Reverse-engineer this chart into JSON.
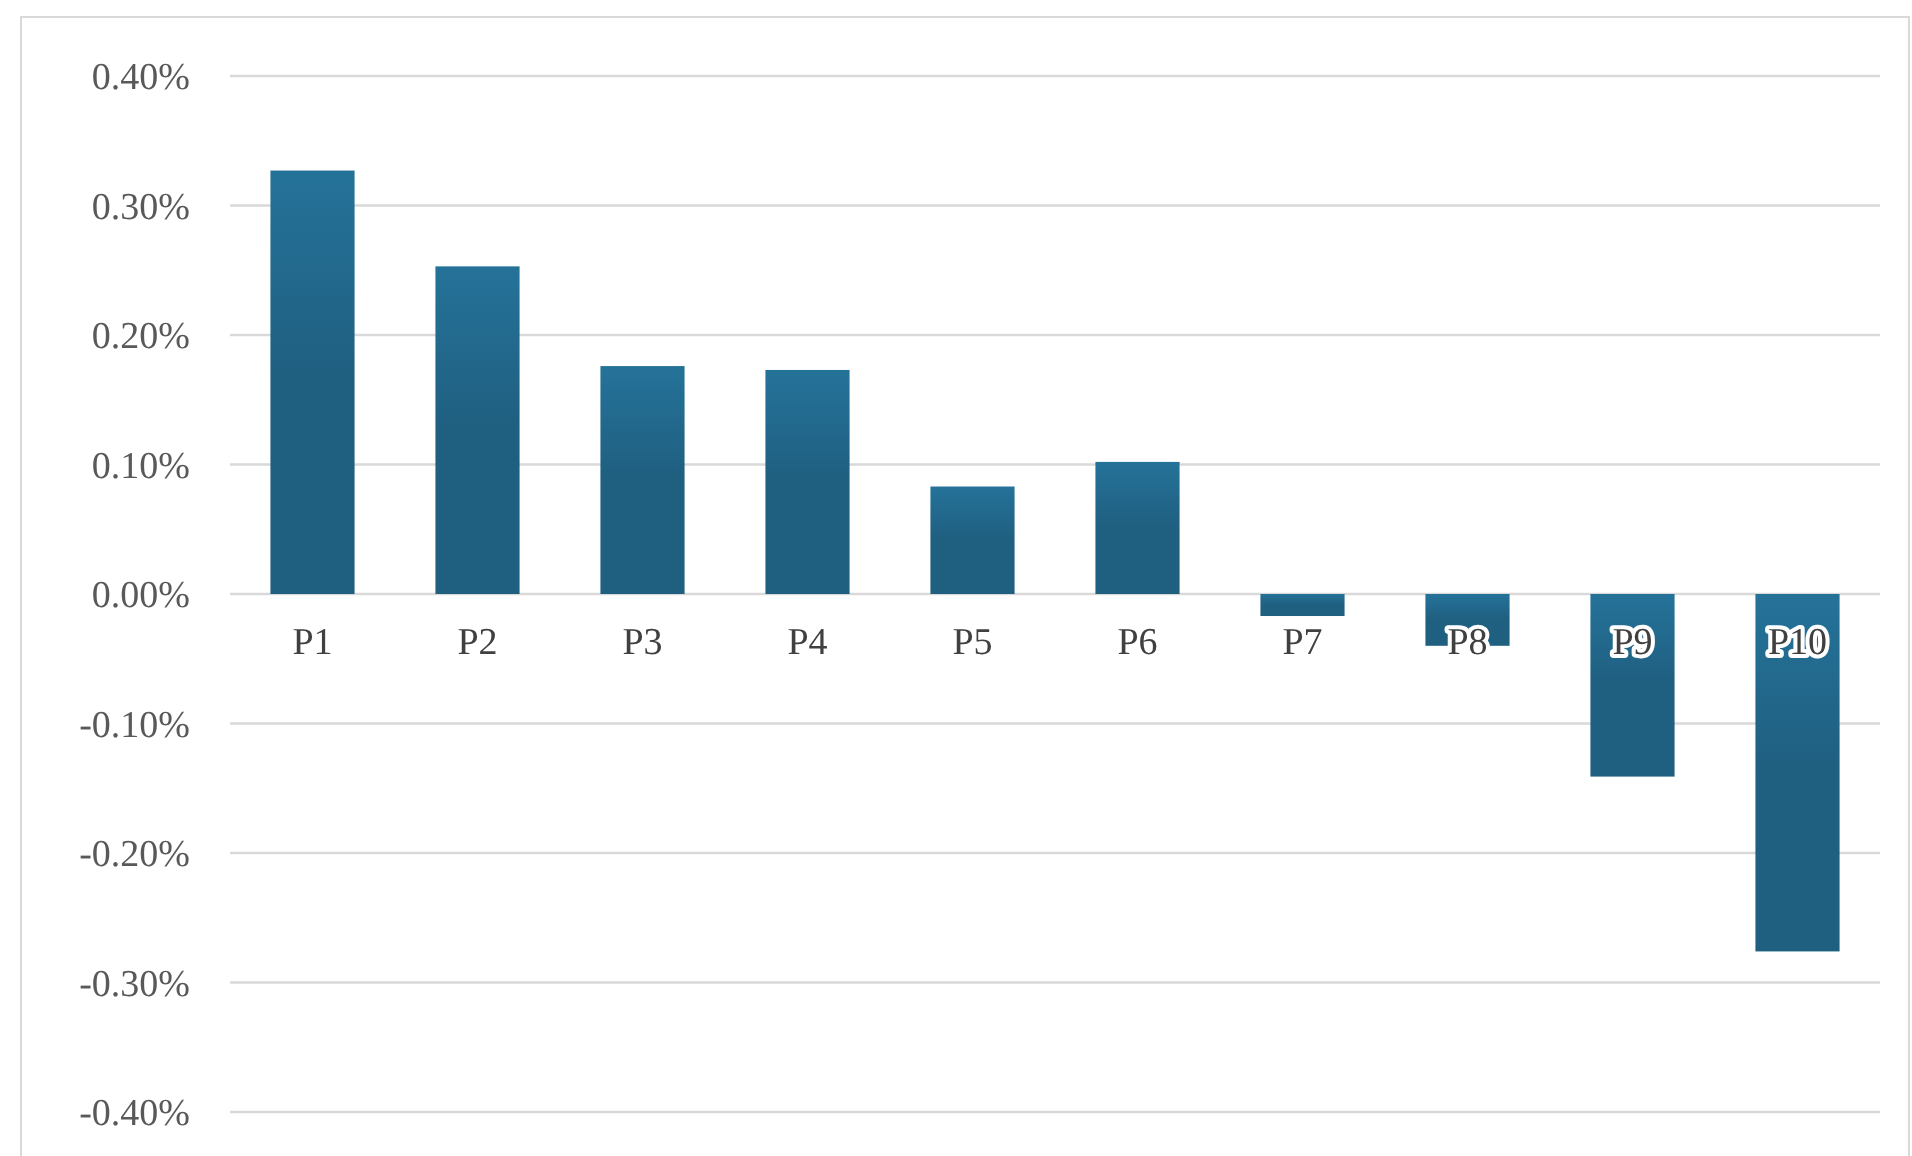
{
  "chart_data": {
    "type": "bar",
    "categories": [
      "P1",
      "P2",
      "P3",
      "P4",
      "P5",
      "P6",
      "P7",
      "P8",
      "P9",
      "P10"
    ],
    "values": [
      0.327,
      0.253,
      0.176,
      0.173,
      0.083,
      0.102,
      -0.017,
      -0.04,
      -0.141,
      -0.276
    ],
    "color": "#1f5f80",
    "ylim": [
      -0.4,
      0.4
    ],
    "yticks": [
      {
        "value": -0.4,
        "label": "-0.40%"
      },
      {
        "value": -0.3,
        "label": "-0.30%"
      },
      {
        "value": -0.2,
        "label": "-0.20%"
      },
      {
        "value": -0.1,
        "label": "-0.10%"
      },
      {
        "value": 0,
        "label": "0.00%"
      },
      {
        "value": 0.1,
        "label": "0.10%"
      },
      {
        "value": 0.2,
        "label": "0.20%"
      },
      {
        "value": 0.3,
        "label": "0.30%"
      },
      {
        "value": 0.4,
        "label": "0.40%"
      }
    ],
    "grid": "y"
  }
}
